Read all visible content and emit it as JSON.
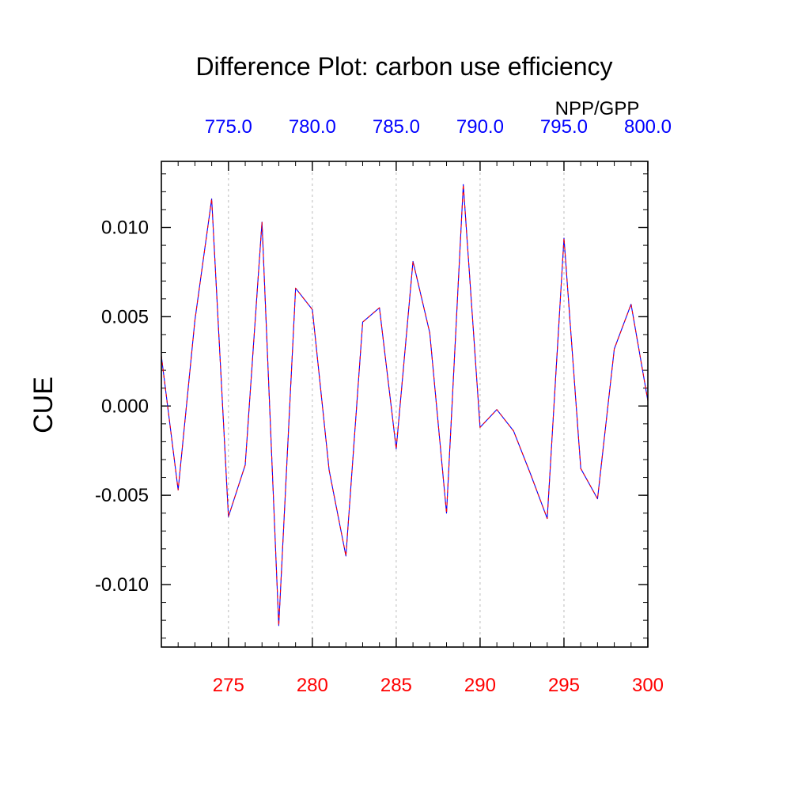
{
  "chart_data": {
    "type": "line",
    "title": "Difference Plot: carbon use efficiency",
    "corner_label": "NPP/GPP",
    "ylabel": "CUE",
    "xlim": [
      271,
      300
    ],
    "ylim": [
      -0.0135,
      0.0137
    ],
    "top_xlim": [
      771,
      800
    ],
    "bottom_ticks": [
      {
        "value": 275,
        "label": "275"
      },
      {
        "value": 280,
        "label": "280"
      },
      {
        "value": 285,
        "label": "285"
      },
      {
        "value": 290,
        "label": "290"
      },
      {
        "value": 295,
        "label": "295"
      },
      {
        "value": 300,
        "label": "300"
      }
    ],
    "top_ticks": [
      {
        "value": 775,
        "label": "775.0"
      },
      {
        "value": 780,
        "label": "780.0"
      },
      {
        "value": 785,
        "label": "785.0"
      },
      {
        "value": 790,
        "label": "790.0"
      },
      {
        "value": 795,
        "label": "795.0"
      },
      {
        "value": 800,
        "label": "800.0"
      }
    ],
    "y_ticks": [
      {
        "value": 0.01,
        "label": "0.010"
      },
      {
        "value": 0.005,
        "label": "0.005"
      },
      {
        "value": 0.0,
        "label": "0.000"
      },
      {
        "value": -0.005,
        "label": "-0.005"
      },
      {
        "value": -0.01,
        "label": "-0.010"
      }
    ],
    "grid": "dashed vertical lines at major x ticks",
    "x": [
      271,
      272,
      273,
      274,
      275,
      276,
      277,
      278,
      279,
      280,
      281,
      282,
      283,
      284,
      285,
      286,
      287,
      288,
      289,
      290,
      291,
      292,
      293,
      294,
      295,
      296,
      297,
      298,
      299,
      300
    ],
    "series": [
      {
        "values": [
          0.0028,
          -0.0047,
          0.0048,
          0.0116,
          -0.0062,
          -0.0033,
          0.0103,
          -0.0123,
          0.0066,
          0.0054,
          -0.0036,
          -0.0084,
          0.0047,
          0.0055,
          -0.0024,
          0.0081,
          0.0041,
          -0.006,
          0.0124,
          -0.0012,
          -0.0002,
          -0.0014,
          -0.0038,
          -0.0063,
          0.0094,
          -0.0035,
          -0.0052,
          0.0032,
          0.0057,
          0.0003
        ],
        "color": "#0000ff"
      },
      {
        "values": [
          0.0028,
          -0.0047,
          0.0048,
          0.0116,
          -0.0062,
          -0.0033,
          0.0103,
          -0.0123,
          0.0066,
          0.0054,
          -0.0036,
          -0.0084,
          0.0047,
          0.0055,
          -0.0024,
          0.0081,
          0.0041,
          -0.006,
          0.0124,
          -0.0012,
          -0.0002,
          -0.0014,
          -0.0038,
          -0.0063,
          0.0094,
          -0.0035,
          -0.0052,
          0.0032,
          0.0057,
          0.0003
        ],
        "color": "#ff0000",
        "dash": true
      }
    ],
    "colors": {
      "bottom_axis": "#ff0000",
      "top_axis": "#0000ff",
      "text": "#000000"
    }
  }
}
